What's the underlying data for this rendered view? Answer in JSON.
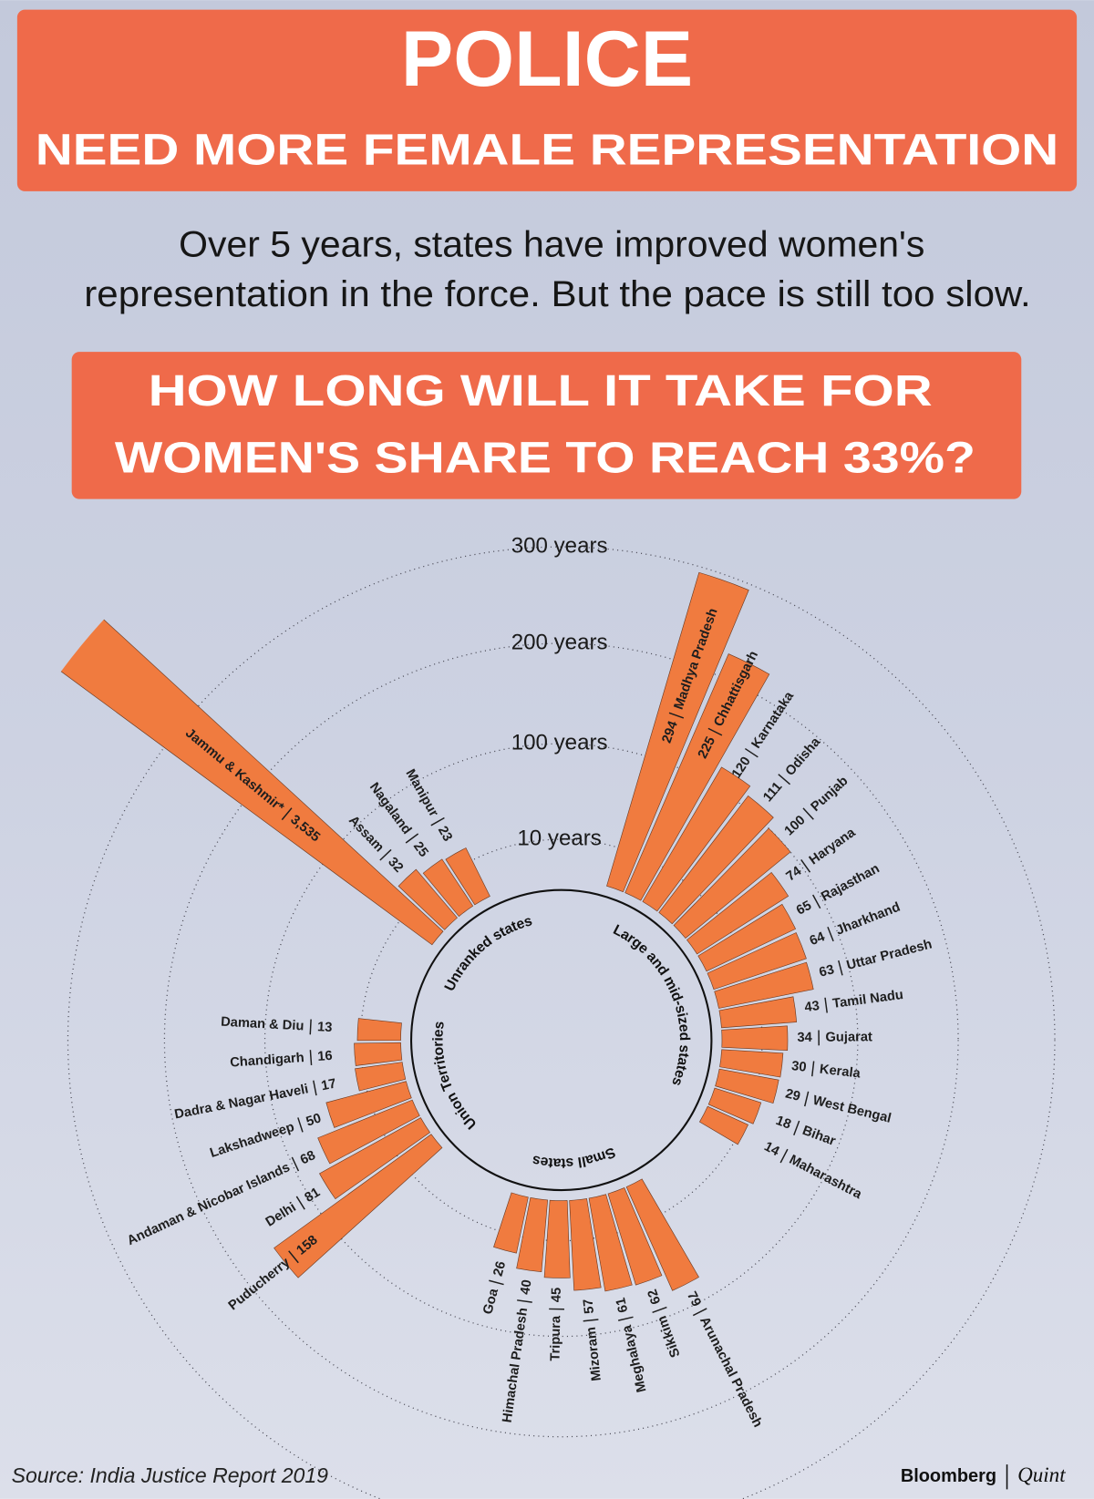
{
  "header": {
    "title": "POLICE",
    "subtitle": "NEED MORE FEMALE REPRESENTATION"
  },
  "intro": [
    "Over 5 years, states have improved women's",
    "representation in the force. But the pace is still too slow."
  ],
  "question": [
    "HOW LONG WILL IT TAKE FOR",
    "WOMEN'S SHARE TO REACH 33%?"
  ],
  "chart_data": {
    "type": "radial_bar",
    "color": "#f07b3f",
    "rlim": [
      0,
      300
    ],
    "rticks": [
      {
        "value": 10,
        "label": "10 years"
      },
      {
        "value": 100,
        "label": "100 years"
      },
      {
        "value": 200,
        "label": "200 years"
      },
      {
        "value": 300,
        "label": "300 years"
      }
    ],
    "groups": [
      {
        "name": "Large and mid-sized states",
        "categories": [
          "Madhya Pradesh",
          "Chhattisgarh",
          "Karnataka",
          "Odisha",
          "Punjab",
          "Haryana",
          "Rajasthan",
          "Jharkhand",
          "Uttar Pradesh",
          "Tamil Nadu",
          "Gujarat",
          "Kerala",
          "West Bengal",
          "Bihar",
          "Maharashtra"
        ],
        "values": [
          294,
          225,
          120,
          111,
          100,
          74,
          65,
          64,
          63,
          43,
          34,
          30,
          29,
          18,
          14
        ]
      },
      {
        "name": "Small states",
        "categories": [
          "Arunachal Pradesh",
          "Sikkim",
          "Meghalaya",
          "Mizoram",
          "Tripura",
          "Himachal Pradesh",
          "Goa"
        ],
        "values": [
          79,
          62,
          61,
          57,
          45,
          40,
          26
        ]
      },
      {
        "name": "Union Territories",
        "categories": [
          "Puducherry",
          "Delhi",
          "Andaman & Nicobar Islands",
          "Lakshadweep",
          "Dadra & Nagar Haveli",
          "Chandigarh",
          "Daman & Diu"
        ],
        "values": [
          158,
          81,
          68,
          50,
          17,
          16,
          13
        ]
      },
      {
        "name": "Unranked states",
        "categories": [
          "Jammu & Kashmir*",
          "Assam",
          "Nagaland",
          "Manipur"
        ],
        "values": [
          3535,
          32,
          25,
          23
        ],
        "value_labels": [
          "3,535",
          "32",
          "25",
          "23"
        ]
      }
    ]
  },
  "source": "Source: India Justice Report 2019",
  "brand": [
    "Bloomberg",
    "Quint"
  ]
}
